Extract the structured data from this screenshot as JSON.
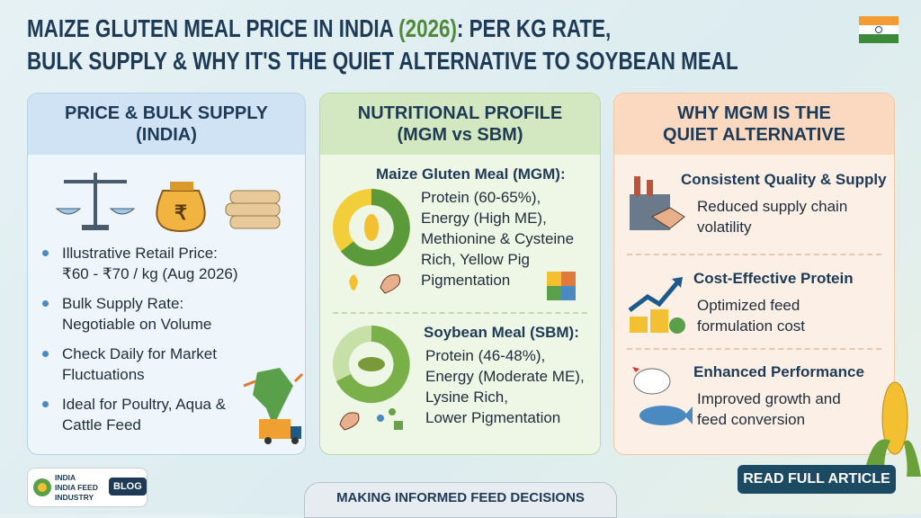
{
  "header": {
    "title_lines": [
      [
        "MAIZE GLUTEN MEAL PRICE IN INDIA ",
        "(2026)",
        ": PER KG RATE,"
      ],
      [
        "BULK SUPPLY & WHY IT'S THE QUIET ALTERNATIVE TO SOYBEAN MEAL"
      ]
    ]
  },
  "panels": [
    {
      "title_lines": [
        "PRICE & BULK SUPPLY",
        "(INDIA)"
      ],
      "icon_symbol": "₹",
      "bullets": [
        [
          "Illustrative Retail Price:",
          "₹60 - ₹70 / kg (Aug 2026)"
        ],
        [
          "Bulk Supply Rate:",
          "Negotiable on Volume"
        ],
        [
          "Check Daily for Market",
          "Fluctuations"
        ],
        [
          "Ideal for Poultry, Aqua &",
          "Cattle Feed"
        ]
      ]
    },
    {
      "title_lines": [
        "NUTRITIONAL PROFILE",
        "(MGM vs SBM)"
      ],
      "sections": [
        {
          "heading": "Maize Gluten Meal (MGM):",
          "lines": [
            "Protein (60-65%),",
            "Energy (High ME),",
            "Methionine & Cysteine",
            "Rich, Yellow Pig",
            "Pigmentation"
          ]
        },
        {
          "heading": "Soybean Meal (SBM):",
          "lines": [
            "Protein (46-48%),",
            "Energy (Moderate ME),",
            "Lysine Rich,",
            "Lower Pigmentation"
          ]
        }
      ]
    },
    {
      "title_lines": [
        "WHY MGM IS THE",
        "QUIET ALTERNATIVE"
      ],
      "items": [
        {
          "heading": "Consistent Quality & Supply",
          "lines": [
            "Reduced supply chain",
            "volatility"
          ]
        },
        {
          "heading": "Cost-Effective Protein",
          "lines": [
            "Optimized feed",
            "formulation cost"
          ]
        },
        {
          "heading": "Enhanced Performance",
          "lines": [
            "Improved growth and",
            "feed conversion"
          ]
        }
      ]
    }
  ],
  "footer": {
    "logo_lines": [
      "INDIA",
      "INDIA FEED",
      "INDUSTRY"
    ],
    "badge": "BLOG",
    "tagline": "MAKING INFORMED FEED DECISIONS",
    "button": "READ FULL ARTICLE"
  }
}
